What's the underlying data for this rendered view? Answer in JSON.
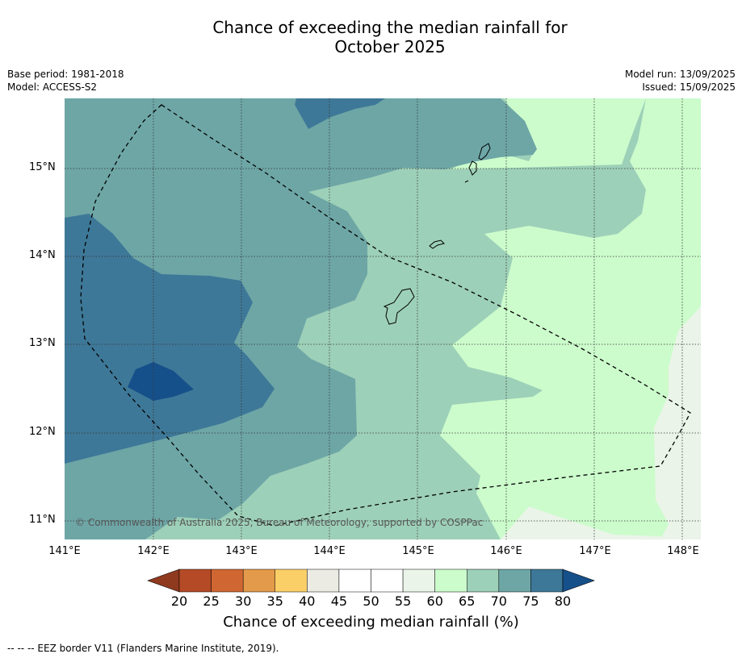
{
  "title_line1": "Chance of exceeding the median rainfall for",
  "title_line2": "October 2025",
  "meta_left": [
    "Base period: 1981-2018",
    "Model: ACCESS-S2"
  ],
  "meta_right": [
    "Model run: 13/09/2025",
    "Issued: 15/09/2025"
  ],
  "lat_labels": [
    "15°N",
    "14°N",
    "13°N",
    "12°N",
    "11°N"
  ],
  "lon_labels": [
    "141°E",
    "142°E",
    "143°E",
    "144°E",
    "145°E",
    "146°E",
    "147°E",
    "148°E"
  ],
  "colorbar": {
    "ticks": [
      "20",
      "25",
      "30",
      "35",
      "40",
      "45",
      "50",
      "55",
      "60",
      "65",
      "70",
      "75",
      "80"
    ],
    "colors": [
      "#8f3a1f",
      "#b44a26",
      "#d06733",
      "#e39a4a",
      "#fbcf68",
      "#ebebe4",
      "#ffffff",
      "#ffffff",
      "#eaf4e8",
      "#ccfccc",
      "#9dd0b8",
      "#6ea6a6",
      "#3e7898",
      "#16508a"
    ],
    "title": "Chance of exceeding median rainfall (%)"
  },
  "map_colors": {
    "p55": "#eaf4e8",
    "p60": "#ccfccc",
    "p65": "#9dd0b8",
    "p70": "#6ea6a6",
    "p75": "#3e7898",
    "p80": "#16508a"
  },
  "copyright": "© Commonwealth of Australia 2025, Bureau of Meteorology, supported by COSPPac",
  "footer": "--  --  -- EEZ border V11 (Flanders Marine Institute, 2019)."
}
